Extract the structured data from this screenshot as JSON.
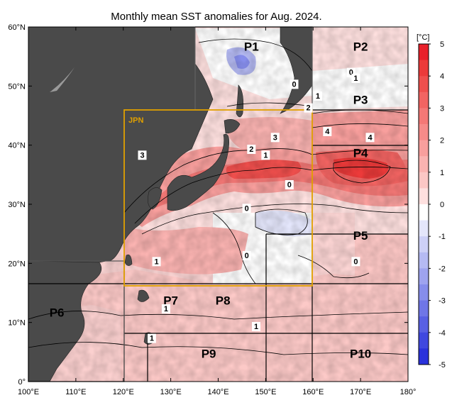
{
  "title": "Monthly mean SST anomalies for Aug. 2024.",
  "lon_labels": [
    "100°E",
    "110°E",
    "120°E",
    "130°E",
    "140°E",
    "150°E",
    "160°E",
    "170°E",
    "180°"
  ],
  "lat_labels": [
    "0°",
    "10°N",
    "20°N",
    "30°N",
    "40°N",
    "50°N",
    "60°N"
  ],
  "colorbar": {
    "unit": "[°C]",
    "ticks": [
      "5",
      "4",
      "3",
      "2",
      "1",
      "0",
      "-1",
      "-2",
      "-3",
      "-4",
      "-5"
    ],
    "levels": [
      {
        "value": 5.0,
        "color": "#e8202a"
      },
      {
        "value": 4.5,
        "color": "#ec3a3a"
      },
      {
        "value": 4.0,
        "color": "#ef4f4d"
      },
      {
        "value": 3.5,
        "color": "#f26462"
      },
      {
        "value": 3.0,
        "color": "#f47876"
      },
      {
        "value": 2.5,
        "color": "#f68b89"
      },
      {
        "value": 2.0,
        "color": "#f89f9d"
      },
      {
        "value": 1.5,
        "color": "#fab3b1"
      },
      {
        "value": 1.0,
        "color": "#fcc7c5"
      },
      {
        "value": 0.5,
        "color": "#fee0df"
      },
      {
        "value": 0.0,
        "color": "#ffffff"
      },
      {
        "value": -0.5,
        "color": "#e4e6fb"
      },
      {
        "value": -1.0,
        "color": "#cdd0f7"
      },
      {
        "value": -1.5,
        "color": "#b5baf3"
      },
      {
        "value": -2.0,
        "color": "#9ea3ef"
      },
      {
        "value": -2.5,
        "color": "#868deb"
      },
      {
        "value": -3.0,
        "color": "#6f76e7"
      },
      {
        "value": -3.5,
        "color": "#5860e3"
      },
      {
        "value": -4.0,
        "color": "#3f48df"
      },
      {
        "value": -4.5,
        "color": "#2a32db"
      },
      {
        "value": -5.0,
        "color": "#1a22d6"
      }
    ]
  },
  "highlight_box": {
    "label": "JPN",
    "lon": [
      120,
      160
    ],
    "lat": [
      20,
      50
    ],
    "color": "#e0a000"
  },
  "regions": [
    {
      "label": "P1",
      "lon": 147,
      "lat": 56
    },
    {
      "label": "P2",
      "lon": 170,
      "lat": 56
    },
    {
      "label": "P3",
      "lon": 170,
      "lat": 47
    },
    {
      "label": "P4",
      "lon": 170,
      "lat": 38
    },
    {
      "label": "P5",
      "lon": 170,
      "lat": 24
    },
    {
      "label": "P6",
      "lon": 106,
      "lat": 11
    },
    {
      "label": "P7",
      "lon": 130,
      "lat": 13
    },
    {
      "label": "P8",
      "lon": 141,
      "lat": 13
    },
    {
      "label": "P9",
      "lon": 138,
      "lat": 4
    },
    {
      "label": "P10",
      "lon": 170,
      "lat": 4
    }
  ],
  "contour_labels": [
    {
      "text": "3",
      "lon": 124,
      "lat": 38
    },
    {
      "text": "3",
      "lon": 152,
      "lat": 41
    },
    {
      "text": "2",
      "lon": 147,
      "lat": 39
    },
    {
      "text": "1",
      "lon": 150,
      "lat": 38
    },
    {
      "text": "4",
      "lon": 163,
      "lat": 42
    },
    {
      "text": "4",
      "lon": 172,
      "lat": 41
    },
    {
      "text": "2",
      "lon": 159,
      "lat": 46
    },
    {
      "text": "1",
      "lon": 161,
      "lat": 48
    },
    {
      "text": "0",
      "lon": 156,
      "lat": 50
    },
    {
      "text": "0",
      "lon": 168,
      "lat": 52
    },
    {
      "text": "1",
      "lon": 169,
      "lat": 51
    },
    {
      "text": "0",
      "lon": 155,
      "lat": 33
    },
    {
      "text": "0",
      "lon": 146,
      "lat": 29
    },
    {
      "text": "0",
      "lon": 146,
      "lat": 21
    },
    {
      "text": "1",
      "lon": 127,
      "lat": 20
    },
    {
      "text": "1",
      "lon": 129,
      "lat": 12
    },
    {
      "text": "1",
      "lon": 126,
      "lat": 7
    },
    {
      "text": "1",
      "lon": 148,
      "lat": 9
    },
    {
      "text": "0",
      "lon": 169,
      "lat": 20
    }
  ]
}
